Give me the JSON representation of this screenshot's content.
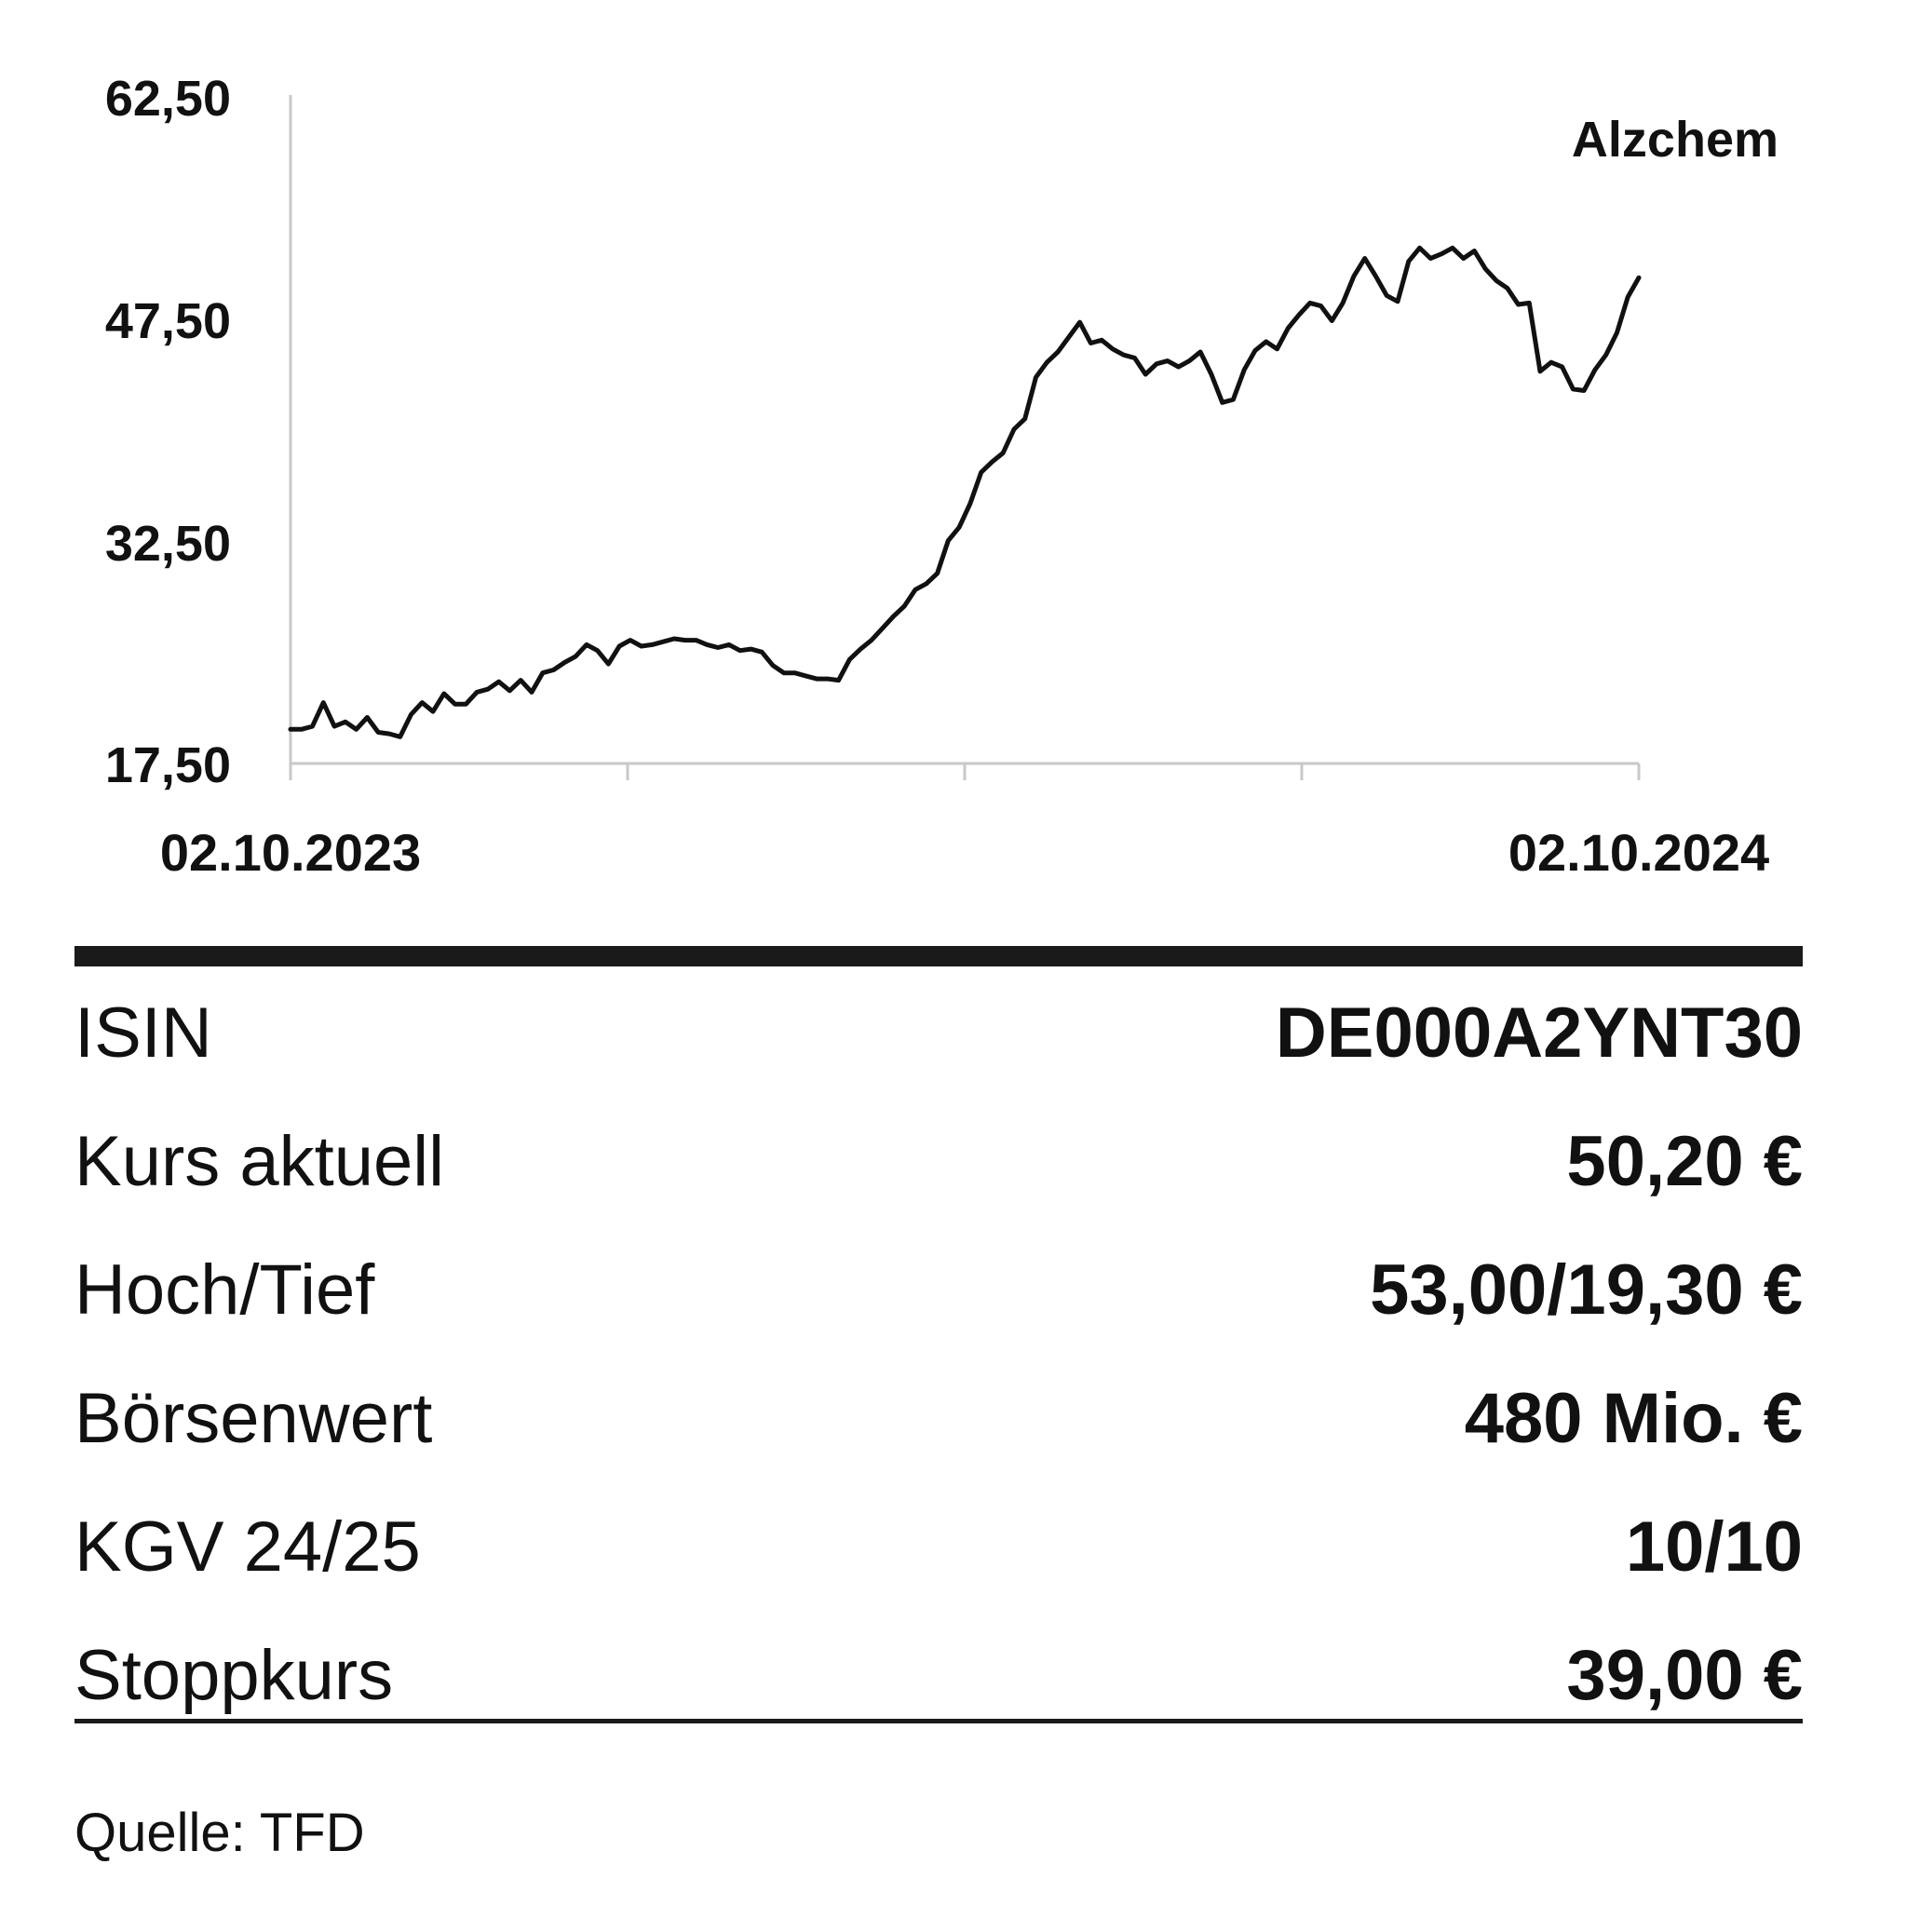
{
  "chart_data": {
    "type": "line",
    "series_title": "Alzchem",
    "ylim": [
      17.5,
      62.5
    ],
    "y_ticks": [
      "62,50",
      "47,50",
      "32,50",
      "17,50"
    ],
    "y_tick_values": [
      62.5,
      47.5,
      32.5,
      17.5
    ],
    "x_labels": [
      "02.10.2023",
      "02.10.2024"
    ],
    "x_range": [
      "2023-10-02",
      "2024-10-02"
    ],
    "grid": false,
    "series": [
      {
        "values": [
          19.8,
          19.8,
          20.0,
          21.6,
          20.0,
          20.3,
          19.8,
          20.6,
          19.6,
          19.5,
          19.3,
          20.8,
          21.6,
          21.0,
          22.2,
          21.5,
          21.5,
          22.3,
          22.5,
          23.0,
          22.4,
          23.1,
          22.3,
          23.6,
          23.8,
          24.3,
          24.7,
          25.5,
          25.1,
          24.2,
          25.4,
          25.8,
          25.4,
          25.5,
          25.7,
          25.9,
          25.8,
          25.8,
          25.5,
          25.3,
          25.5,
          25.1,
          25.2,
          25.0,
          24.1,
          23.6,
          23.6,
          23.4,
          23.2,
          23.2,
          23.1,
          24.5,
          25.2,
          25.8,
          26.6,
          27.4,
          28.1,
          29.2,
          29.6,
          30.3,
          32.5,
          33.4,
          35.0,
          37.1,
          37.8,
          38.4,
          40.0,
          40.7,
          43.5,
          44.5,
          45.2,
          46.2,
          47.2,
          45.8,
          46.0,
          45.4,
          45.0,
          44.8,
          43.7,
          44.4,
          44.6,
          44.2,
          44.6,
          45.2,
          43.7,
          41.8,
          42.0,
          44.0,
          45.3,
          45.9,
          45.4,
          46.8,
          47.7,
          48.5,
          48.3,
          47.3,
          48.5,
          50.3,
          51.5,
          50.3,
          49.0,
          48.6,
          51.3,
          52.2,
          51.5,
          51.8,
          52.2,
          51.5,
          52.0,
          50.8,
          50.0,
          49.5,
          48.4,
          48.5,
          43.9,
          44.5,
          44.2,
          42.7,
          42.6,
          44.0,
          45.0,
          46.5,
          48.9,
          50.2
        ]
      }
    ]
  },
  "table": {
    "rows": [
      {
        "label": "ISIN",
        "value": "DE000A2YNT30"
      },
      {
        "label": "Kurs aktuell",
        "value": "50,20 €"
      },
      {
        "label": "Hoch/Tief",
        "value": "53,00/19,30 €"
      },
      {
        "label": "Börsenwert",
        "value": "480 Mio. €"
      },
      {
        "label": "KGV 24/25",
        "value": "10/10"
      },
      {
        "label": "Stoppkurs",
        "value": "39,00 €"
      }
    ]
  },
  "source": "Quelle: TFD",
  "colors": {
    "line": "#111111",
    "axis": "#c8c8c8",
    "rule": "#1a1a1a"
  }
}
